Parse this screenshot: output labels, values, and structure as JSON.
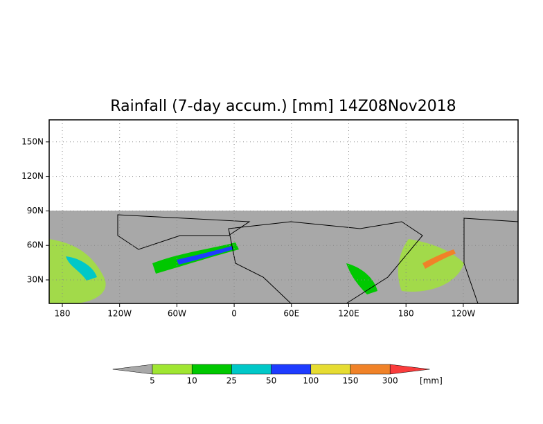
{
  "title": "Rainfall (7-day accum.) [mm] 14Z08Nov2018",
  "x_axis": {
    "labels": [
      "180",
      "120W",
      "60W",
      "0",
      "60E",
      "120E",
      "180",
      "120W"
    ]
  },
  "y_axis": {
    "labels": [
      "30N",
      "60N",
      "90N",
      "120N",
      "150N"
    ]
  },
  "colorbar": {
    "levels": [
      5,
      10,
      25,
      50,
      100,
      150,
      300
    ],
    "unit": "[mm]",
    "colors": [
      "#a8a8a8",
      "#a0e632",
      "#00c800",
      "#00c8c8",
      "#1e3cff",
      "#e6dc32",
      "#f08228",
      "#fa3c3c"
    ]
  }
}
